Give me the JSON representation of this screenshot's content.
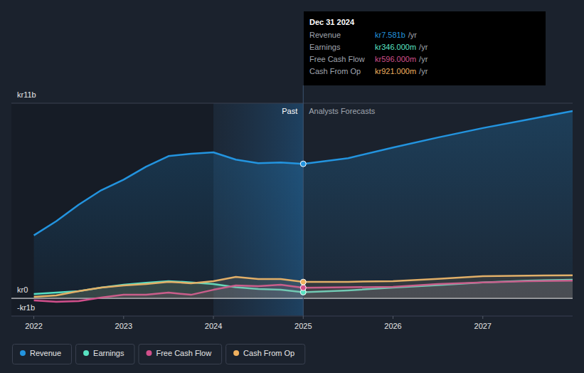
{
  "chart_data": {
    "type": "line",
    "x": [
      2022,
      2022.25,
      2022.5,
      2022.75,
      2023,
      2023.25,
      2023.5,
      2023.75,
      2024,
      2024.25,
      2024.5,
      2024.75,
      2025,
      2025.5,
      2026,
      2026.5,
      2027,
      2027.5,
      2028
    ],
    "series": [
      {
        "name": "Revenue",
        "color": "#2394df",
        "values": [
          3.55,
          4.35,
          5.28,
          6.09,
          6.69,
          7.42,
          8.02,
          8.15,
          8.23,
          7.82,
          7.62,
          7.66,
          7.581,
          7.9,
          8.5,
          9.07,
          9.6,
          10.08,
          10.56
        ]
      },
      {
        "name": "Earnings",
        "color": "#58e2c2",
        "values": [
          0.24,
          0.32,
          0.4,
          0.6,
          0.77,
          0.88,
          0.97,
          0.9,
          0.8,
          0.62,
          0.52,
          0.48,
          0.346,
          0.45,
          0.6,
          0.75,
          0.9,
          1.0,
          1.05
        ]
      },
      {
        "name": "Free Cash Flow",
        "color": "#d14f8b",
        "values": [
          -0.12,
          -0.2,
          -0.16,
          0.04,
          0.2,
          0.2,
          0.32,
          0.2,
          0.48,
          0.73,
          0.69,
          0.77,
          0.596,
          0.62,
          0.65,
          0.8,
          0.9,
          0.97,
          1.0
        ]
      },
      {
        "name": "Cash From Op",
        "color": "#f0b15f",
        "values": [
          0.08,
          0.16,
          0.4,
          0.6,
          0.73,
          0.8,
          0.93,
          0.85,
          0.97,
          1.21,
          1.09,
          1.09,
          0.921,
          0.93,
          0.97,
          1.1,
          1.25,
          1.28,
          1.3
        ]
      }
    ],
    "xlim": [
      2021.75,
      2028
    ],
    "xticks": [
      2022,
      2023,
      2024,
      2025,
      2026,
      2027
    ],
    "ylim": [
      -1,
      11
    ],
    "yticks": [
      {
        "value": 11,
        "label": "kr11b"
      },
      {
        "value": 0,
        "label": "kr0"
      },
      {
        "value": -1,
        "label": "-kr1b"
      }
    ],
    "grid": true,
    "legend": "bottom",
    "annotations": {
      "highlight_from": 2024,
      "split_at": 2025,
      "left": "Past",
      "right": "Analysts Forecasts"
    },
    "tooltip": {
      "title": "Dec 31 2024",
      "rows": [
        {
          "label": "Revenue",
          "value": "kr7.581b",
          "unit": "/yr"
        },
        {
          "label": "Earnings",
          "value": "kr346.000m",
          "unit": "/yr"
        },
        {
          "label": "Free Cash Flow",
          "value": "kr596.000m",
          "unit": "/yr"
        },
        {
          "label": "Cash From Op",
          "value": "kr921.000m",
          "unit": "/yr"
        }
      ]
    }
  }
}
